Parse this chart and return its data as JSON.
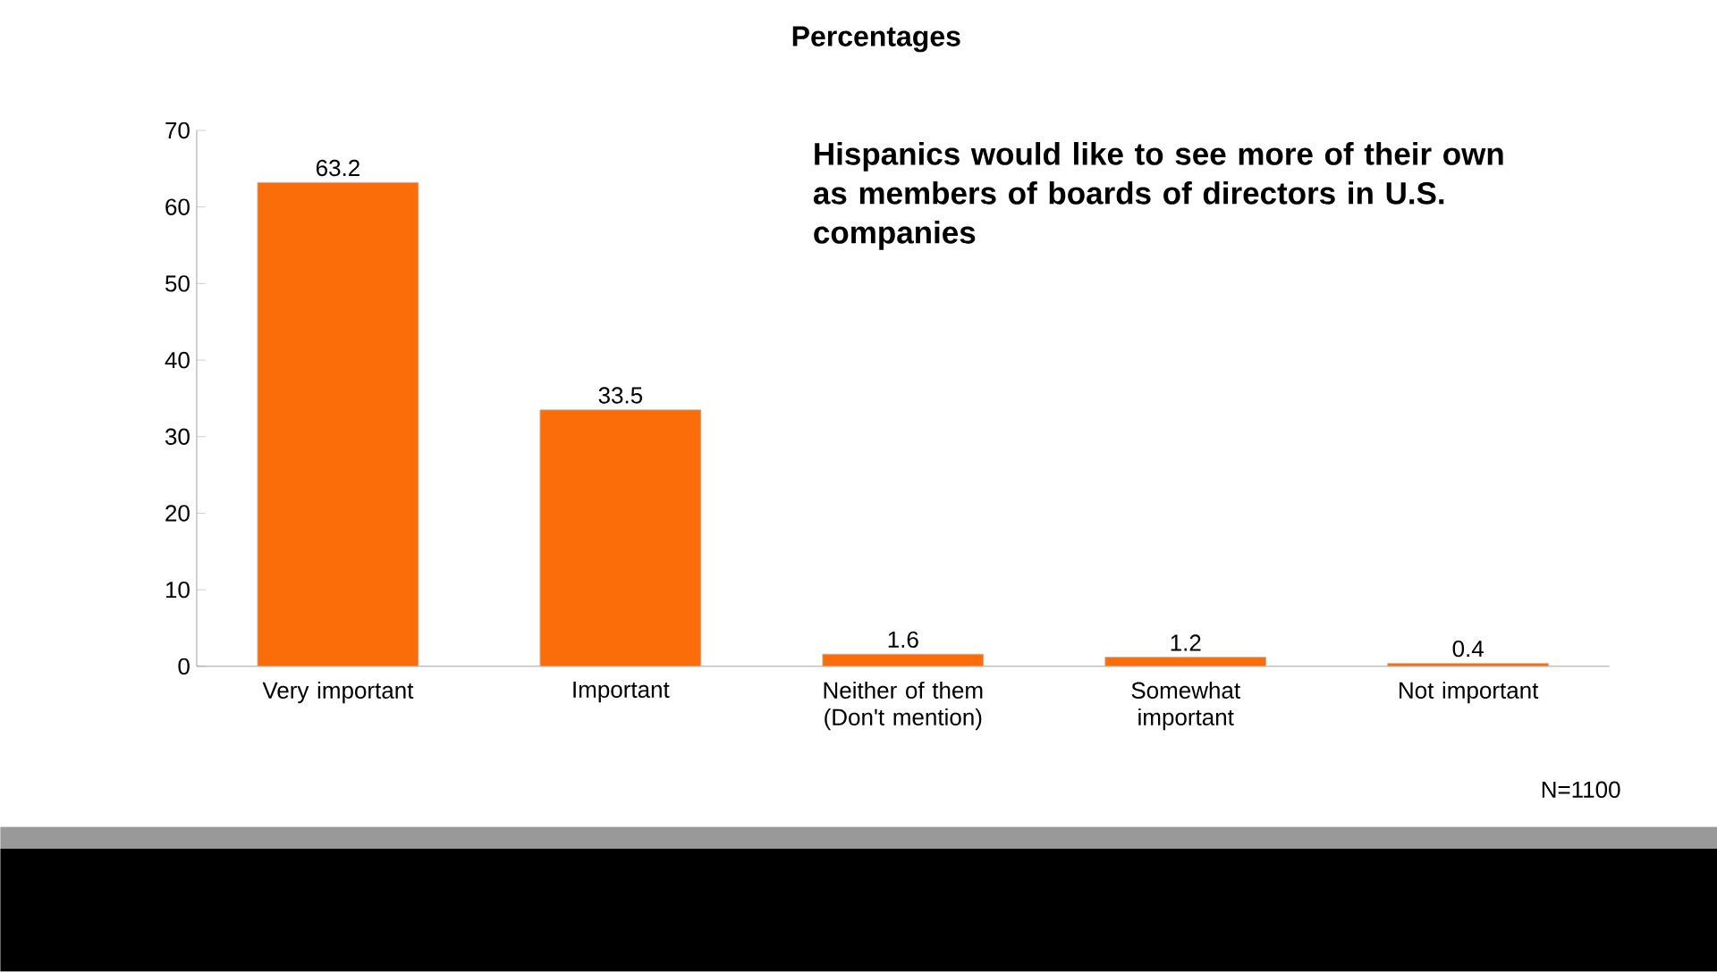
{
  "chart_data": {
    "type": "bar",
    "title": "Percentages",
    "categories": [
      "Very important",
      "Important",
      "Neither of them (Don't mention)",
      "Somewhat important",
      "Not important"
    ],
    "values": [
      63.2,
      33.5,
      1.6,
      1.2,
      0.4
    ],
    "color": "#fb6d09",
    "ylim": [
      0,
      70
    ],
    "yticks": [
      0,
      10,
      20,
      30,
      40,
      50,
      60,
      70
    ],
    "data_labels": true,
    "annotations": [
      "Hispanics would like to see more of their own as members of boards of directors in U.S. companies",
      "N=1100"
    ]
  }
}
